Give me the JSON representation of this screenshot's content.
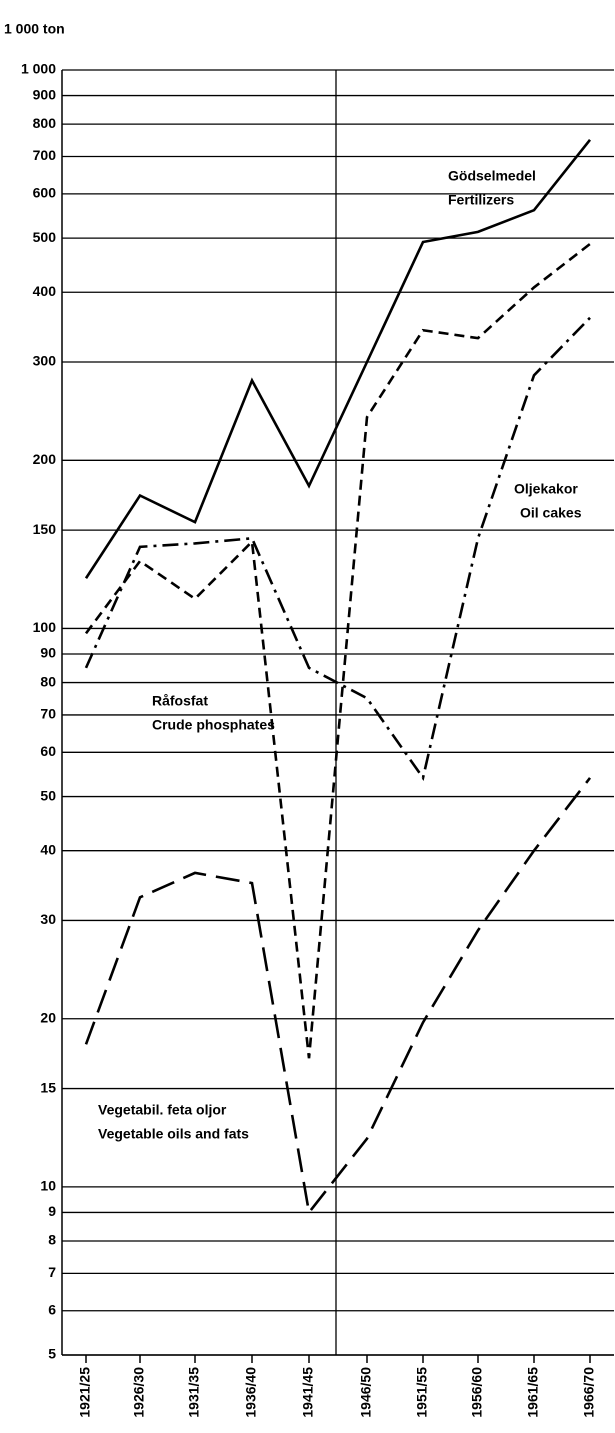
{
  "chart_data": {
    "type": "line",
    "y_label": "1 000 ton",
    "categories": [
      "1921/25",
      "1926/30",
      "1931/35",
      "1936/40",
      "1941/45",
      "1946/50",
      "1951/55",
      "1956/60",
      "1961/65",
      "1966/70"
    ],
    "series": [
      {
        "name": "Fertilizers",
        "name_sv": "Gödselmedel",
        "color": "#000000",
        "dash": "solid",
        "values": [
          123,
          173,
          155,
          278,
          180,
          300,
          492,
          513,
          561,
          750
        ]
      },
      {
        "name": "Oil cakes",
        "name_sv": "Oljekakor",
        "color": "#000000",
        "dash": "dashdot",
        "values": [
          85,
          140,
          142,
          145,
          85,
          75,
          54,
          145,
          284,
          360
        ]
      },
      {
        "name": "Crude phosphates",
        "name_sv": "Råfosfat",
        "color": "#000000",
        "dash": "dashed",
        "values": [
          98,
          132,
          113,
          143,
          17,
          239,
          342,
          331,
          408,
          488
        ]
      },
      {
        "name": "Vegetable oils and fats",
        "name_sv": "Vegetabil. feta oljor",
        "color": "#000000",
        "dash": "longdash",
        "values": [
          18,
          33,
          36.5,
          35,
          9,
          12.2,
          19.7,
          28.8,
          40,
          54
        ]
      }
    ],
    "ylim": [
      5,
      1000
    ],
    "log_y": true,
    "grid": true,
    "yticks": [
      {
        "value": 1000,
        "label": "1 000"
      },
      900,
      800,
      700,
      600,
      500,
      400,
      300,
      200,
      150,
      100,
      90,
      80,
      70,
      60,
      50,
      40,
      30,
      20,
      15,
      10,
      9,
      8,
      7,
      6,
      5
    ]
  }
}
